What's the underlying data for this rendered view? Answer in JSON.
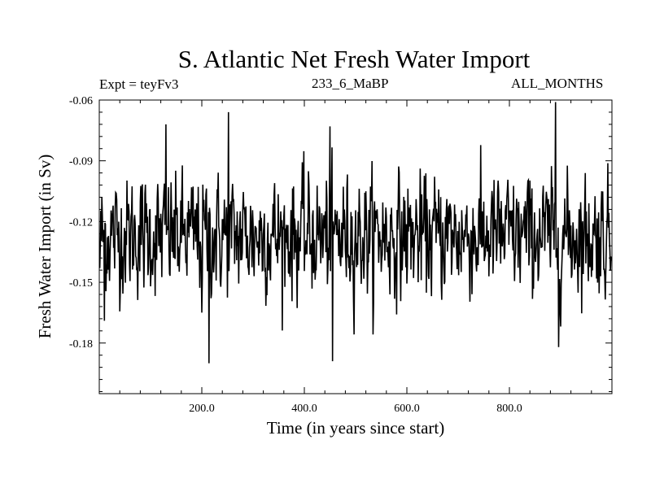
{
  "chart_data": {
    "type": "line",
    "title": "S. Atlantic Net Fresh Water Import",
    "experiment_label": "Expt = teyFv3",
    "run_label": "233_6_MaBP",
    "period_label": "ALL_MONTHS",
    "xlabel": "Time (in years since start)",
    "ylabel": "Fresh Water Import (in Sv)",
    "xlim": [
      0,
      1000
    ],
    "ylim": [
      -0.205,
      -0.06
    ],
    "xticks": [
      200,
      400,
      600,
      800
    ],
    "xtick_labels": [
      "200.0",
      "400.0",
      "600.0",
      "800.0"
    ],
    "yticks": [
      -0.06,
      -0.09,
      -0.12,
      -0.15,
      -0.18
    ],
    "ytick_labels": [
      "-0.06",
      "-0.09",
      "-0.12",
      "-0.15",
      "-0.18"
    ],
    "series": [
      {
        "name": "Net fresh water import",
        "x_start": 1,
        "x_step": 1,
        "n": 999,
        "mean": -0.127,
        "std": 0.014,
        "annotated_points": [
          {
            "x": 1,
            "y": -0.143
          },
          {
            "x": 10,
            "y": -0.169
          },
          {
            "x": 130,
            "y": -0.072
          },
          {
            "x": 200,
            "y": -0.165
          },
          {
            "x": 214,
            "y": -0.19
          },
          {
            "x": 252,
            "y": -0.066
          },
          {
            "x": 450,
            "y": -0.073
          },
          {
            "x": 455,
            "y": -0.189
          },
          {
            "x": 890,
            "y": -0.061
          },
          {
            "x": 896,
            "y": -0.182
          }
        ]
      }
    ]
  }
}
